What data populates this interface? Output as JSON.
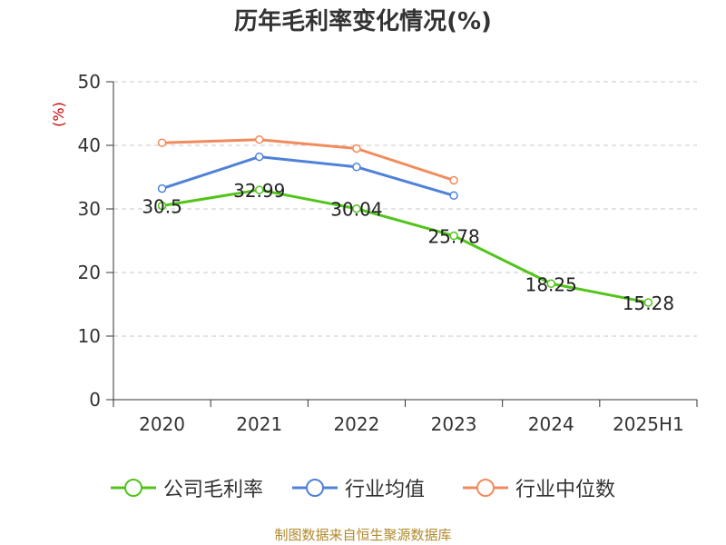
{
  "title": "历年毛利率变化情况(%)",
  "source": "制图数据来自恒生聚源数据库",
  "chart_data": {
    "type": "line",
    "title": "历年毛利率变化情况(%)",
    "ylabel": "(%)",
    "xlabel": "",
    "categories": [
      "2020",
      "2021",
      "2022",
      "2023",
      "2024",
      "2025H1"
    ],
    "ylim": [
      0,
      50
    ],
    "yticks": [
      0,
      10,
      20,
      30,
      40,
      50
    ],
    "grid": true,
    "legend_position": "bottom",
    "series": [
      {
        "name": "公司毛利率",
        "color": "#52c41a",
        "values": [
          30.5,
          32.99,
          30.04,
          25.78,
          18.25,
          15.28
        ],
        "labels": [
          "30.5",
          "32.99",
          "30.04",
          "25.78",
          "18.25",
          "15.28"
        ]
      },
      {
        "name": "行业均值",
        "color": "#4f81d9",
        "values": [
          33.2,
          38.2,
          36.6,
          32.1,
          null,
          null
        ]
      },
      {
        "name": "行业中位数",
        "color": "#f28b5b",
        "values": [
          40.4,
          40.9,
          39.5,
          34.5,
          null,
          null
        ]
      }
    ]
  }
}
